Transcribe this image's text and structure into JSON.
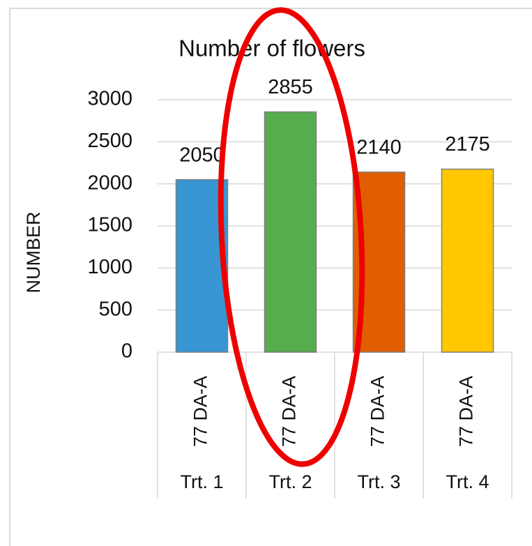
{
  "chart_data": {
    "type": "bar",
    "title": "Number of flowers",
    "y_label": "NUMBER",
    "categories": [
      "Trt. 1",
      "Trt. 2",
      "Trt. 3",
      "Trt. 4"
    ],
    "sublabels": [
      "77 DA-A",
      "77 DA-A",
      "77 DA-A",
      "77 DA-A"
    ],
    "values": [
      2050,
      2855,
      2140,
      2175
    ],
    "colors": [
      "#3796d3",
      "#55ad4d",
      "#e05e00",
      "#ffc800"
    ],
    "ylim": [
      0,
      3000
    ],
    "yticks": [
      0,
      500,
      1000,
      1500,
      2000,
      2500,
      3000
    ],
    "grid": true
  }
}
